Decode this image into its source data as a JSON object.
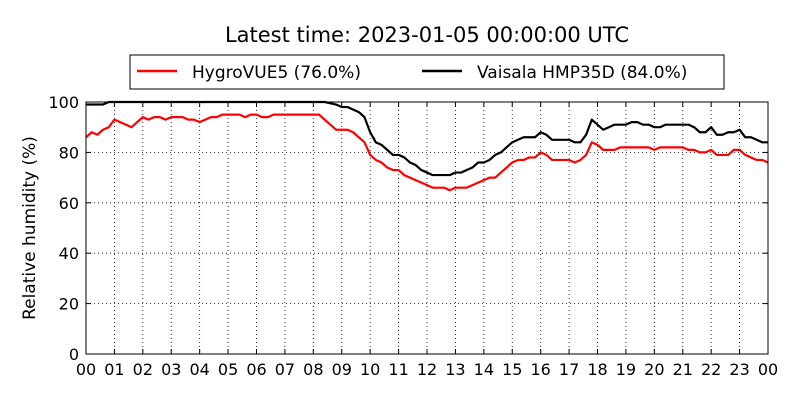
{
  "chart_data": {
    "type": "line",
    "title": "Latest time: 2023-01-05 00:00:00 UTC",
    "xlabel": "",
    "ylabel": "Relative humidity (%)",
    "xlim": [
      0,
      24
    ],
    "ylim": [
      0,
      100
    ],
    "grid": true,
    "legend_position": "top",
    "x_tick_labels": [
      "00",
      "01",
      "02",
      "03",
      "04",
      "05",
      "06",
      "07",
      "08",
      "09",
      "10",
      "11",
      "12",
      "13",
      "14",
      "15",
      "16",
      "17",
      "18",
      "19",
      "20",
      "21",
      "22",
      "23",
      "00"
    ],
    "y_ticks": [
      0,
      20,
      40,
      60,
      80,
      100
    ],
    "series": [
      {
        "name": "HygroVUE5 (76.0%)",
        "color": "#ff0000",
        "points": [
          [
            0.0,
            86
          ],
          [
            0.2,
            88
          ],
          [
            0.4,
            87
          ],
          [
            0.6,
            89
          ],
          [
            0.8,
            90
          ],
          [
            1.0,
            93
          ],
          [
            1.2,
            92
          ],
          [
            1.4,
            91
          ],
          [
            1.6,
            90
          ],
          [
            1.8,
            92
          ],
          [
            2.0,
            94
          ],
          [
            2.2,
            93
          ],
          [
            2.4,
            94
          ],
          [
            2.6,
            94
          ],
          [
            2.8,
            93
          ],
          [
            3.0,
            94
          ],
          [
            3.2,
            94
          ],
          [
            3.4,
            94
          ],
          [
            3.6,
            93
          ],
          [
            3.8,
            93
          ],
          [
            4.0,
            92
          ],
          [
            4.2,
            93
          ],
          [
            4.4,
            94
          ],
          [
            4.6,
            94
          ],
          [
            4.8,
            95
          ],
          [
            5.0,
            95
          ],
          [
            5.2,
            95
          ],
          [
            5.4,
            95
          ],
          [
            5.6,
            94
          ],
          [
            5.8,
            95
          ],
          [
            6.0,
            95
          ],
          [
            6.2,
            94
          ],
          [
            6.4,
            94
          ],
          [
            6.6,
            95
          ],
          [
            6.8,
            95
          ],
          [
            7.0,
            95
          ],
          [
            7.2,
            95
          ],
          [
            7.4,
            95
          ],
          [
            7.6,
            95
          ],
          [
            7.8,
            95
          ],
          [
            8.0,
            95
          ],
          [
            8.2,
            95
          ],
          [
            8.4,
            93
          ],
          [
            8.6,
            91
          ],
          [
            8.8,
            89
          ],
          [
            9.0,
            89
          ],
          [
            9.2,
            89
          ],
          [
            9.4,
            88
          ],
          [
            9.6,
            86
          ],
          [
            9.8,
            84
          ],
          [
            10.0,
            79
          ],
          [
            10.2,
            77
          ],
          [
            10.4,
            76
          ],
          [
            10.6,
            74
          ],
          [
            10.8,
            73
          ],
          [
            11.0,
            73
          ],
          [
            11.2,
            71
          ],
          [
            11.4,
            70
          ],
          [
            11.6,
            69
          ],
          [
            11.8,
            68
          ],
          [
            12.0,
            67
          ],
          [
            12.2,
            66
          ],
          [
            12.4,
            66
          ],
          [
            12.6,
            66
          ],
          [
            12.8,
            65
          ],
          [
            13.0,
            66
          ],
          [
            13.2,
            66
          ],
          [
            13.4,
            66
          ],
          [
            13.6,
            67
          ],
          [
            13.8,
            68
          ],
          [
            14.0,
            69
          ],
          [
            14.2,
            70
          ],
          [
            14.4,
            70
          ],
          [
            14.6,
            72
          ],
          [
            14.8,
            74
          ],
          [
            15.0,
            76
          ],
          [
            15.2,
            77
          ],
          [
            15.4,
            77
          ],
          [
            15.6,
            78
          ],
          [
            15.8,
            78
          ],
          [
            16.0,
            80
          ],
          [
            16.2,
            79
          ],
          [
            16.4,
            77
          ],
          [
            16.6,
            77
          ],
          [
            16.8,
            77
          ],
          [
            17.0,
            77
          ],
          [
            17.2,
            76
          ],
          [
            17.4,
            77
          ],
          [
            17.6,
            79
          ],
          [
            17.8,
            84
          ],
          [
            18.0,
            83
          ],
          [
            18.2,
            81
          ],
          [
            18.4,
            81
          ],
          [
            18.6,
            81
          ],
          [
            18.8,
            82
          ],
          [
            19.0,
            82
          ],
          [
            19.2,
            82
          ],
          [
            19.4,
            82
          ],
          [
            19.6,
            82
          ],
          [
            19.8,
            82
          ],
          [
            20.0,
            81
          ],
          [
            20.2,
            82
          ],
          [
            20.4,
            82
          ],
          [
            20.6,
            82
          ],
          [
            20.8,
            82
          ],
          [
            21.0,
            82
          ],
          [
            21.2,
            81
          ],
          [
            21.4,
            81
          ],
          [
            21.6,
            80
          ],
          [
            21.8,
            80
          ],
          [
            22.0,
            81
          ],
          [
            22.2,
            79
          ],
          [
            22.4,
            79
          ],
          [
            22.6,
            79
          ],
          [
            22.8,
            81
          ],
          [
            23.0,
            81
          ],
          [
            23.2,
            79
          ],
          [
            23.4,
            78
          ],
          [
            23.6,
            77
          ],
          [
            23.8,
            77
          ],
          [
            24.0,
            76
          ]
        ]
      },
      {
        "name": "Vaisala HMP35D (84.0%)",
        "color": "#000000",
        "points": [
          [
            0.0,
            99
          ],
          [
            0.2,
            99
          ],
          [
            0.4,
            99
          ],
          [
            0.6,
            99
          ],
          [
            0.8,
            100
          ],
          [
            1.0,
            100
          ],
          [
            1.2,
            100
          ],
          [
            1.4,
            100
          ],
          [
            1.6,
            100
          ],
          [
            1.8,
            100
          ],
          [
            2.0,
            100
          ],
          [
            2.4,
            100
          ],
          [
            2.8,
            100
          ],
          [
            3.2,
            100
          ],
          [
            3.6,
            100
          ],
          [
            4.0,
            100
          ],
          [
            4.4,
            100
          ],
          [
            4.8,
            100
          ],
          [
            5.2,
            100
          ],
          [
            5.6,
            100
          ],
          [
            6.0,
            100
          ],
          [
            6.4,
            100
          ],
          [
            6.8,
            100
          ],
          [
            7.2,
            100
          ],
          [
            7.6,
            100
          ],
          [
            8.0,
            100
          ],
          [
            8.4,
            100
          ],
          [
            8.8,
            99
          ],
          [
            9.0,
            98
          ],
          [
            9.2,
            98
          ],
          [
            9.4,
            97
          ],
          [
            9.6,
            96
          ],
          [
            9.8,
            94
          ],
          [
            10.0,
            88
          ],
          [
            10.2,
            84
          ],
          [
            10.4,
            83
          ],
          [
            10.6,
            81
          ],
          [
            10.8,
            79
          ],
          [
            11.0,
            79
          ],
          [
            11.2,
            78
          ],
          [
            11.4,
            76
          ],
          [
            11.6,
            75
          ],
          [
            11.8,
            73
          ],
          [
            12.0,
            72
          ],
          [
            12.2,
            71
          ],
          [
            12.4,
            71
          ],
          [
            12.6,
            71
          ],
          [
            12.8,
            71
          ],
          [
            13.0,
            72
          ],
          [
            13.2,
            72
          ],
          [
            13.4,
            73
          ],
          [
            13.6,
            74
          ],
          [
            13.8,
            76
          ],
          [
            14.0,
            76
          ],
          [
            14.2,
            77
          ],
          [
            14.4,
            79
          ],
          [
            14.6,
            80
          ],
          [
            14.8,
            82
          ],
          [
            15.0,
            84
          ],
          [
            15.2,
            85
          ],
          [
            15.4,
            86
          ],
          [
            15.6,
            86
          ],
          [
            15.8,
            86
          ],
          [
            16.0,
            88
          ],
          [
            16.2,
            87
          ],
          [
            16.4,
            85
          ],
          [
            16.6,
            85
          ],
          [
            16.8,
            85
          ],
          [
            17.0,
            85
          ],
          [
            17.2,
            84
          ],
          [
            17.4,
            84
          ],
          [
            17.6,
            87
          ],
          [
            17.8,
            93
          ],
          [
            18.0,
            91
          ],
          [
            18.2,
            89
          ],
          [
            18.4,
            90
          ],
          [
            18.6,
            91
          ],
          [
            18.8,
            91
          ],
          [
            19.0,
            91
          ],
          [
            19.2,
            92
          ],
          [
            19.4,
            92
          ],
          [
            19.6,
            91
          ],
          [
            19.8,
            91
          ],
          [
            20.0,
            90
          ],
          [
            20.2,
            90
          ],
          [
            20.4,
            91
          ],
          [
            20.6,
            91
          ],
          [
            20.8,
            91
          ],
          [
            21.0,
            91
          ],
          [
            21.2,
            91
          ],
          [
            21.4,
            90
          ],
          [
            21.6,
            88
          ],
          [
            21.8,
            88
          ],
          [
            22.0,
            90
          ],
          [
            22.2,
            87
          ],
          [
            22.4,
            87
          ],
          [
            22.6,
            88
          ],
          [
            22.8,
            88
          ],
          [
            23.0,
            89
          ],
          [
            23.2,
            86
          ],
          [
            23.4,
            86
          ],
          [
            23.6,
            85
          ],
          [
            23.8,
            84
          ],
          [
            24.0,
            84
          ]
        ]
      }
    ]
  }
}
